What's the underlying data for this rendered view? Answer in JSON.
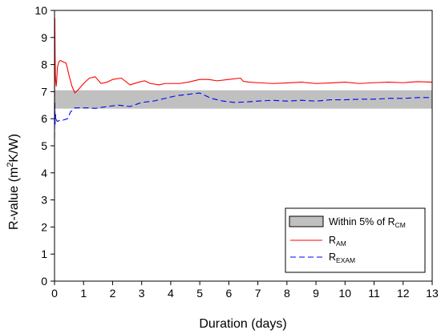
{
  "chart_data": {
    "type": "line",
    "xlabel": "Duration (days)",
    "ylabel": {
      "prefix": "R-value (m",
      "sup": "2",
      "suffix": "K/W)"
    },
    "xlim": [
      0,
      13
    ],
    "ylim": [
      0,
      10
    ],
    "xticks": [
      "0",
      "1",
      "2",
      "3",
      "4",
      "5",
      "6",
      "7",
      "8",
      "9",
      "10",
      "11",
      "12",
      "13"
    ],
    "yticks": [
      "0",
      "1",
      "2",
      "3",
      "4",
      "5",
      "6",
      "7",
      "8",
      "9",
      "10"
    ],
    "band": {
      "name": {
        "main": "Within 5% of R",
        "sub": "CM"
      },
      "y_low": 6.37,
      "y_high": 7.05,
      "color": "#c0c0c0"
    },
    "legend_placement": "lower-right",
    "series": [
      {
        "name": {
          "main": "R",
          "sub": "AM"
        },
        "color": "#ff0000",
        "style": "solid",
        "x": [
          0,
          0.01,
          0.02,
          0.03,
          0.04,
          0.06,
          0.08,
          0.1,
          0.15,
          0.2,
          0.3,
          0.4,
          0.5,
          0.6,
          0.7,
          0.8,
          1.0,
          1.2,
          1.4,
          1.6,
          1.8,
          2.0,
          2.3,
          2.6,
          2.9,
          3.1,
          3.3,
          3.6,
          3.8,
          4.0,
          4.3,
          4.6,
          5.0,
          5.3,
          5.6,
          6.0,
          6.4,
          6.5,
          6.7,
          7.0,
          7.5,
          8.0,
          8.5,
          9.0,
          9.5,
          10.0,
          10.5,
          11.0,
          11.5,
          12.0,
          12.5,
          13.0
        ],
        "y": [
          6.3,
          9.7,
          8.3,
          7.6,
          7.4,
          7.2,
          7.5,
          7.9,
          8.1,
          8.15,
          8.1,
          8.05,
          7.6,
          7.2,
          6.95,
          7.05,
          7.3,
          7.5,
          7.55,
          7.3,
          7.35,
          7.45,
          7.5,
          7.25,
          7.35,
          7.4,
          7.3,
          7.25,
          7.3,
          7.3,
          7.3,
          7.35,
          7.45,
          7.45,
          7.4,
          7.45,
          7.5,
          7.38,
          7.35,
          7.33,
          7.3,
          7.32,
          7.35,
          7.3,
          7.32,
          7.35,
          7.3,
          7.33,
          7.35,
          7.33,
          7.37,
          7.35
        ]
      },
      {
        "name": {
          "main": "R",
          "sub": "EXAM"
        },
        "color": "#0000ff",
        "style": "dashed",
        "x": [
          0,
          0.01,
          0.02,
          0.04,
          0.06,
          0.1,
          0.2,
          0.3,
          0.45,
          0.55,
          0.7,
          0.9,
          1.1,
          1.4,
          1.8,
          2.2,
          2.6,
          3.0,
          3.4,
          3.8,
          4.2,
          4.6,
          5.0,
          5.4,
          5.8,
          6.2,
          6.6,
          7.0,
          7.5,
          8.0,
          8.5,
          9.0,
          9.5,
          10.0,
          10.5,
          11.0,
          11.5,
          12.0,
          12.5,
          13.0
        ],
        "y": [
          5.3,
          6.6,
          5.8,
          6.15,
          5.95,
          5.9,
          5.95,
          5.95,
          6.0,
          6.25,
          6.4,
          6.4,
          6.4,
          6.38,
          6.45,
          6.5,
          6.45,
          6.6,
          6.65,
          6.75,
          6.85,
          6.9,
          6.95,
          6.75,
          6.65,
          6.6,
          6.62,
          6.65,
          6.68,
          6.65,
          6.68,
          6.65,
          6.7,
          6.7,
          6.72,
          6.72,
          6.75,
          6.75,
          6.78,
          6.78
        ]
      }
    ]
  }
}
